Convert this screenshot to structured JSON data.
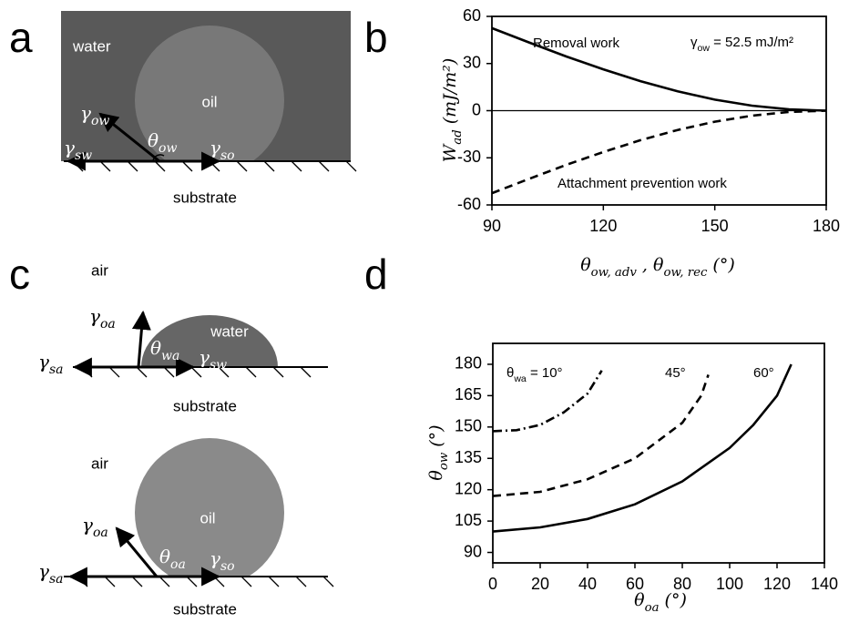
{
  "panels": {
    "a": {
      "letter": "a",
      "water": "water",
      "oil": "oil",
      "gamma_ow": [
        "γ",
        "ow"
      ],
      "gamma_sw": [
        "γ",
        "sw"
      ],
      "theta_ow": [
        "θ",
        "ow"
      ],
      "gamma_so": [
        "γ",
        "so"
      ],
      "substrate": "substrate"
    },
    "c": {
      "letter": "c",
      "top": {
        "air": "air",
        "gamma_oa": [
          "γ",
          "oa"
        ],
        "water": "water",
        "theta_wa": [
          "θ",
          "wa"
        ],
        "gamma_sw": [
          "γ",
          "sw"
        ],
        "gamma_sa": [
          "γ",
          "sa"
        ],
        "substrate": "substrate"
      },
      "bottom": {
        "air": "air",
        "gamma_oa": [
          "γ",
          "oa"
        ],
        "oil": "oil",
        "theta_oa": [
          "θ",
          "oa"
        ],
        "gamma_so": [
          "γ",
          "so"
        ],
        "gamma_sa": [
          "γ",
          "sa"
        ],
        "substrate": "substrate"
      }
    }
  },
  "chart_data": [
    {
      "type": "line",
      "panel": "b",
      "xlabel": [
        "θ",
        "ow, adv",
        " , θ",
        "ow, rec",
        " (°)"
      ],
      "ylabel": [
        "W",
        "ad",
        "  (mJ/m²)"
      ],
      "x": [
        90,
        100,
        110,
        120,
        130,
        140,
        150,
        160,
        170,
        180
      ],
      "series": [
        {
          "color": "#000000",
          "style": "solid",
          "values": [
            52.5,
            43.4,
            34.5,
            26.3,
            18.8,
            12.3,
            7,
            3.2,
            0.8,
            0
          ]
        },
        {
          "color": "#000000",
          "style": "dashed",
          "values": [
            -52.5,
            -43.4,
            -34.5,
            -26.3,
            -18.8,
            -12.3,
            -7,
            -3.2,
            -0.8,
            0
          ]
        }
      ],
      "hline": 0,
      "annotations": [
        "Removal work",
        "Attachment prevention work",
        [
          "γ",
          "ow",
          " = 52.5 mJ/m²"
        ]
      ],
      "xlim": [
        90,
        180
      ],
      "xticks": [
        90,
        120,
        150,
        180
      ],
      "ylim": [
        -60,
        60
      ],
      "yticks": [
        60,
        30,
        0,
        -30,
        -60
      ]
    },
    {
      "type": "line",
      "panel": "d",
      "xlabel": [
        "θ",
        "oa",
        " (°)"
      ],
      "ylabel": [
        "θ",
        "ow",
        "  (°)"
      ],
      "series": [
        {
          "color": "#000000",
          "style": "dashdot",
          "x": [
            0,
            10,
            20,
            30,
            40,
            46
          ],
          "values": [
            148,
            148.5,
            151,
            157,
            166,
            177
          ]
        },
        {
          "color": "#000000",
          "style": "dashed",
          "x": [
            0,
            20,
            40,
            60,
            80,
            88,
            91
          ],
          "values": [
            117,
            119,
            125,
            135,
            152,
            165,
            175
          ]
        },
        {
          "color": "#000000",
          "style": "solid",
          "x": [
            0,
            20,
            40,
            60,
            80,
            100,
            110,
            120,
            126
          ],
          "values": [
            100,
            102,
            106,
            113,
            124,
            140,
            151,
            165,
            180
          ]
        }
      ],
      "annotations": [
        [
          "θ",
          "wa",
          " = 10°"
        ],
        "45°",
        "60°"
      ],
      "xlim": [
        0,
        140
      ],
      "xticks": [
        0,
        20,
        40,
        60,
        80,
        100,
        120,
        140
      ],
      "ylim": [
        85,
        190
      ],
      "yticks": [
        90,
        105,
        120,
        135,
        150,
        165,
        180
      ]
    }
  ]
}
